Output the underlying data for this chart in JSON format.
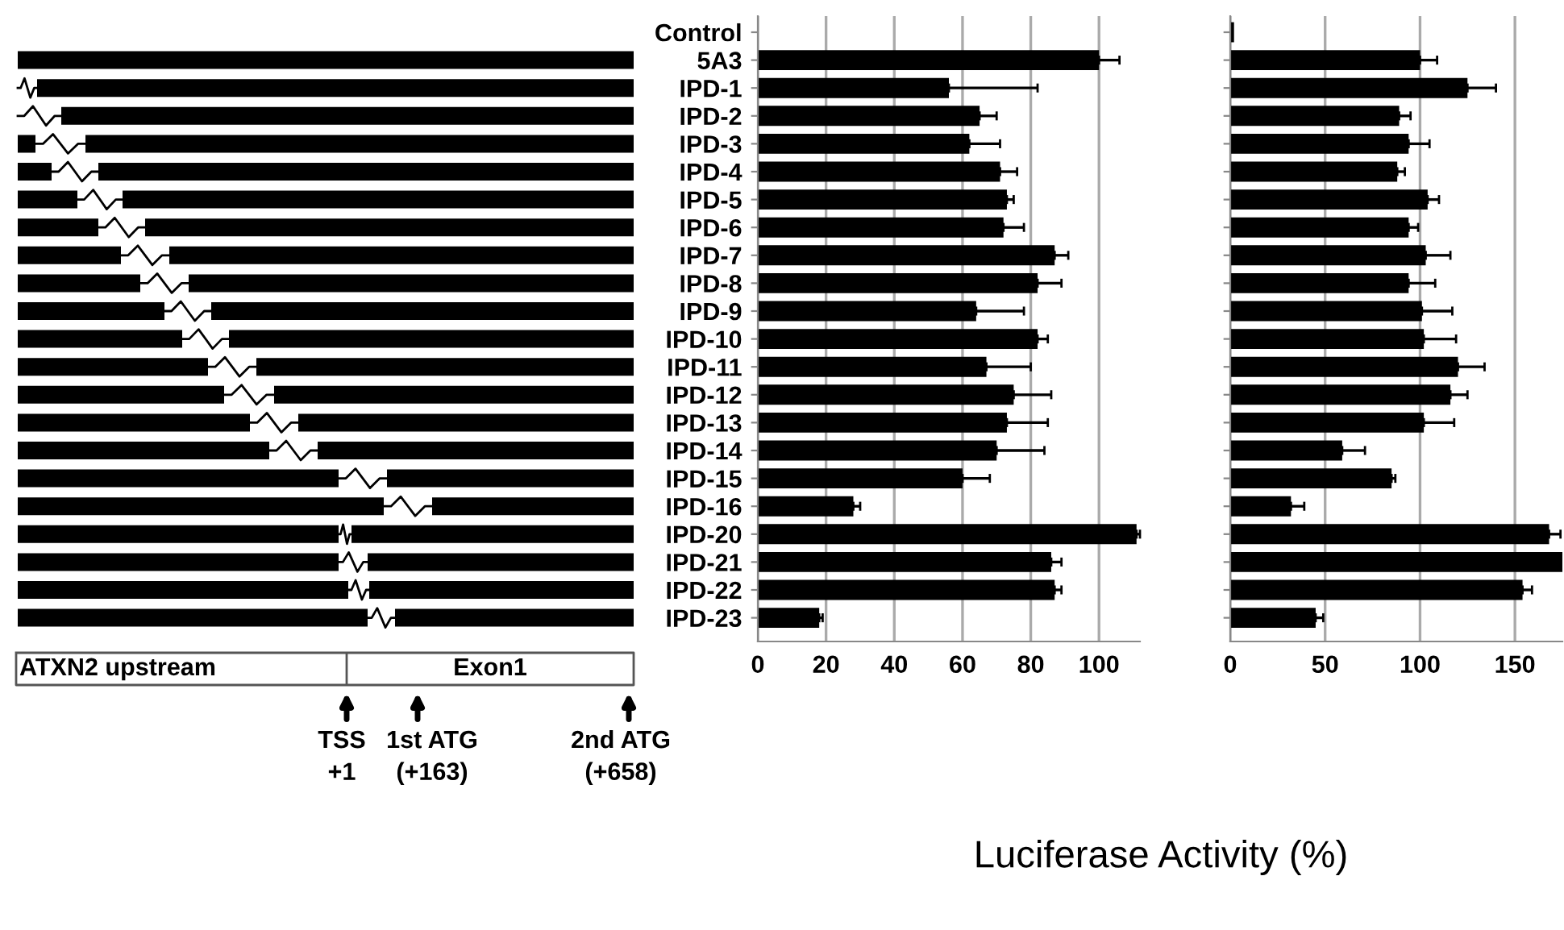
{
  "chart_data": [
    {
      "type": "bar",
      "orientation": "horizontal",
      "xlabel": "Luciferase Activity (%)",
      "categories": [
        "Control",
        "5A3",
        "IPD-1",
        "IPD-2",
        "IPD-3",
        "IPD-4",
        "IPD-5",
        "IPD-6",
        "IPD-7",
        "IPD-8",
        "IPD-9",
        "IPD-10",
        "IPD-11",
        "IPD-12",
        "IPD-13",
        "IPD-14",
        "IPD-15",
        "IPD-16",
        "IPD-20",
        "IPD-21",
        "IPD-22",
        "IPD-23"
      ],
      "values": [
        0,
        100,
        56,
        65,
        62,
        71,
        73,
        72,
        87,
        82,
        64,
        82,
        67,
        75,
        73,
        70,
        60,
        28,
        111,
        86,
        87,
        18
      ],
      "errors": [
        null,
        [
          100,
          106
        ],
        [
          56,
          82
        ],
        [
          65,
          70
        ],
        [
          62,
          71
        ],
        [
          71,
          76
        ],
        [
          73,
          75
        ],
        [
          72,
          78
        ],
        [
          87,
          91
        ],
        [
          82,
          89
        ],
        [
          64,
          78
        ],
        [
          82,
          85
        ],
        [
          67,
          80
        ],
        [
          75,
          86
        ],
        [
          73,
          85
        ],
        [
          70,
          84
        ],
        [
          60,
          68
        ],
        [
          28,
          30
        ],
        [
          111,
          112
        ],
        [
          86,
          89
        ],
        [
          87,
          89
        ],
        [
          18,
          19
        ]
      ],
      "color": "#000000",
      "xlim": [
        0,
        112
      ],
      "xticks": [
        0,
        20,
        40,
        60,
        80,
        100
      ],
      "grid": "x",
      "annotations": [
        "ATXN2 upstream",
        "Exon1",
        "TSS\n+1",
        "1st ATG\n(+163)",
        "2nd ATG\n(+658)"
      ]
    },
    {
      "type": "bar",
      "orientation": "horizontal",
      "tick_labels": "x",
      "categories": [
        null,
        null,
        null,
        null,
        null,
        null,
        null,
        null,
        null,
        null,
        null,
        null,
        null,
        null,
        null,
        null,
        null,
        null,
        null,
        null,
        null,
        null
      ],
      "values": [
        2,
        100,
        125,
        89,
        94,
        88,
        104,
        94,
        103,
        94,
        101,
        102,
        120,
        116,
        102,
        59,
        85,
        32,
        168,
        175,
        154,
        45
      ],
      "errors": [
        null,
        [
          100,
          109
        ],
        [
          125,
          140
        ],
        [
          89,
          95
        ],
        [
          94,
          105
        ],
        [
          88,
          92
        ],
        [
          104,
          110
        ],
        [
          94,
          99
        ],
        [
          103,
          116
        ],
        [
          94,
          108
        ],
        [
          101,
          117
        ],
        [
          102,
          119
        ],
        [
          120,
          134
        ],
        [
          116,
          125
        ],
        [
          102,
          118
        ],
        [
          59,
          71
        ],
        [
          85,
          87
        ],
        [
          32,
          39
        ],
        [
          168,
          174
        ],
        null,
        [
          154,
          159
        ],
        [
          45,
          49
        ]
      ],
      "color": "#000000",
      "xlim": [
        0,
        175
      ],
      "xticks": [
        0,
        50,
        100,
        150
      ],
      "grid": "x"
    }
  ]
}
